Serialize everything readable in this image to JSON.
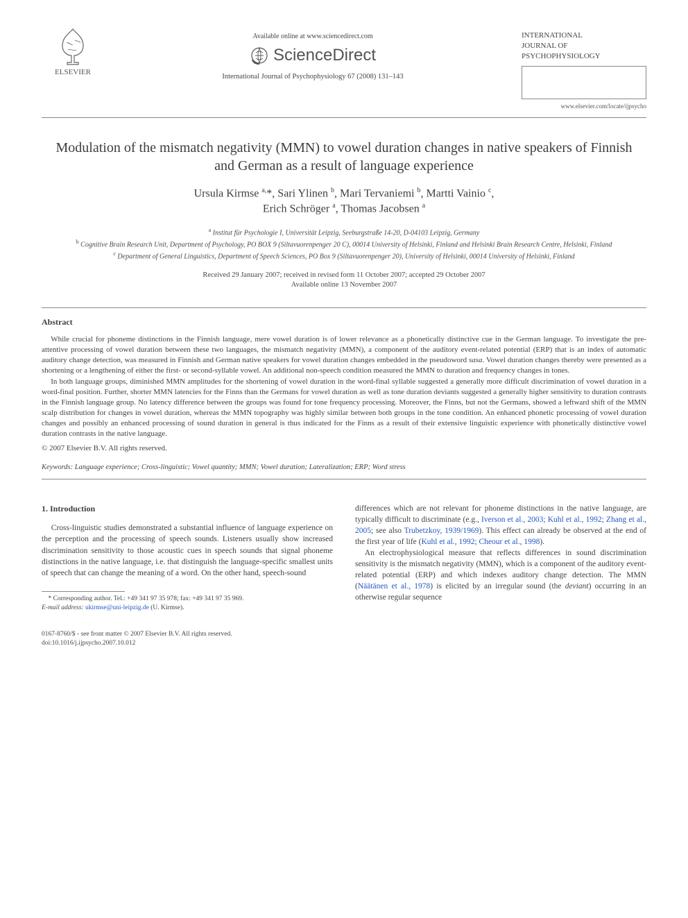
{
  "header": {
    "elsevier_label": "ELSEVIER",
    "available_online": "Available online at www.sciencedirect.com",
    "sciencedirect_text": "ScienceDirect",
    "journal_reference": "International Journal of Psychophysiology 67 (2008) 131–143",
    "journal_title_line1": "INTERNATIONAL",
    "journal_title_line2": "JOURNAL OF",
    "journal_title_line3": "PSYCHOPHYSIOLOGY",
    "journal_url": "www.elsevier.com/locate/ijpsycho"
  },
  "article": {
    "title": "Modulation of the mismatch negativity (MMN) to vowel duration changes in native speakers of Finnish and German as a result of language experience",
    "authors_html": "Ursula Kirmse <sup>a,</sup>*, Sari Ylinen <sup>b</sup>, Mari Tervaniemi <sup>b</sup>, Martti Vainio <sup>c</sup>,<br>Erich Schröger <sup>a</sup>, Thomas Jacobsen <sup>a</sup>",
    "affiliations": {
      "a": "Institut für Psychologie I, Universität Leipzig, Seeburgstraße 14-20, D-04103 Leipzig, Germany",
      "b": "Cognitive Brain Research Unit, Department of Psychology, PO BOX 9 (Siltavuorenpenger 20 C), 00014 University of Helsinki, Finland and Helsinki Brain Research Centre, Helsinki, Finland",
      "c": "Department of General Linguistics, Department of Speech Sciences, PO Box 9 (Siltavuorenpenger 20), University of Helsinki, 00014 University of Helsinki, Finland"
    },
    "dates_line1": "Received 29 January 2007; received in revised form 11 October 2007; accepted 29 October 2007",
    "dates_line2": "Available online 13 November 2007"
  },
  "abstract": {
    "heading": "Abstract",
    "para1": "While crucial for phoneme distinctions in the Finnish language, mere vowel duration is of lower relevance as a phonetically distinctive cue in the German language. To investigate the pre-attentive processing of vowel duration between these two languages, the mismatch negativity (MMN), a component of the auditory event-related potential (ERP) that is an index of automatic auditory change detection, was measured in Finnish and German native speakers for vowel duration changes embedded in the pseudoword sasa. Vowel duration changes thereby were presented as a shortening or a lengthening of either the first- or second-syllable vowel. An additional non-speech condition measured the MMN to duration and frequency changes in tones.",
    "para2": "In both language groups, diminished MMN amplitudes for the shortening of vowel duration in the word-final syllable suggested a generally more difficult discrimination of vowel duration in a word-final position. Further, shorter MMN latencies for the Finns than the Germans for vowel duration as well as tone duration deviants suggested a generally higher sensitivity to duration contrasts in the Finnish language group. No latency difference between the groups was found for tone frequency processing. Moreover, the Finns, but not the Germans, showed a leftward shift of the MMN scalp distribution for changes in vowel duration, whereas the MMN topography was highly similar between both groups in the tone condition. An enhanced phonetic processing of vowel duration changes and possibly an enhanced processing of sound duration in general is thus indicated for the Finns as a result of their extensive linguistic experience with phonetically distinctive vowel duration contrasts in the native language.",
    "copyright": "© 2007 Elsevier B.V. All rights reserved.",
    "keywords_label": "Keywords:",
    "keywords": "Language experience; Cross-linguistic; Vowel quantity; MMN; Vowel duration; Lateralization; ERP; Word stress"
  },
  "introduction": {
    "heading": "1. Introduction",
    "col1": "Cross-linguistic studies demonstrated a substantial influence of language experience on the perception and the processing of speech sounds. Listeners usually show increased discrimination sensitivity to those acoustic cues in speech sounds that signal phoneme distinctions in the native language, i.e. that distinguish the language-specific smallest units of speech that can change the meaning of a word. On the other hand, speech-sound",
    "col2_pre_links": "differences which are not relevant for phoneme distinctions in the native language, are typically difficult to discriminate (e.g., ",
    "link1": "Iverson et al., 2003; Kuhl et al., 1992; Zhang et al., 2005",
    "col2_mid1": "; see also ",
    "link2": "Trubetzkoy, 1939/1969",
    "col2_mid2": "). This effect can already be observed at the end of the first year of life (",
    "link3": "Kuhl et al., 1992; Cheour et al., 1998",
    "col2_mid3": ").",
    "col2_para2_pre": "An electrophysiological measure that reflects differences in sound discrimination sensitivity is the mismatch negativity (MMN), which is a component of the auditory event-related potential (ERP) and which indexes auditory change detection. The MMN (",
    "link4": "Näätänen et al., 1978",
    "col2_para2_post": ") is elicited by an irregular sound (the ",
    "deviant": "deviant",
    "col2_para2_end": ") occurring in an otherwise regular sequence"
  },
  "footnote": {
    "corr": "* Corresponding author. Tel.: +49 341 97 35 978; fax: +49 341 97 35 969.",
    "email_label": "E-mail address:",
    "email": "ukirmse@uni-leipzig.de",
    "email_suffix": " (U. Kirmse)."
  },
  "footer": {
    "line1": "0167-8760/$ - see front matter © 2007 Elsevier B.V. All rights reserved.",
    "line2": "doi:10.1016/j.ijpsycho.2007.10.012"
  },
  "colors": {
    "text": "#414141",
    "link": "#2057c4",
    "rule": "#888888",
    "background": "#ffffff"
  }
}
